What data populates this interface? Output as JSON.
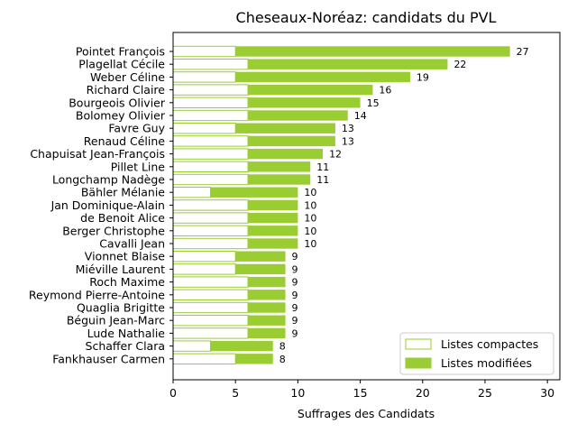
{
  "chart_data": {
    "type": "bar",
    "orientation": "horizontal",
    "stacked": true,
    "title": "Cheseaux-Noréaz: candidats du PVL",
    "xlabel": "Suffrages des Candidats",
    "ylabel": "",
    "xlim": [
      0,
      31
    ],
    "xticks": [
      0,
      5,
      10,
      15,
      20,
      25,
      30
    ],
    "grid": false,
    "legend_position": "lower-right",
    "categories": [
      "Pointet François",
      "Plagellat Cécile",
      "Weber Céline",
      "Richard Claire",
      "Bourgeois Olivier",
      "Bolomey Olivier",
      "Favre Guy",
      "Renaud Céline",
      "Chapuisat Jean-François",
      "Pillet Line",
      "Longchamp Nadège",
      "Bähler Mélanie",
      "Jan Dominique-Alain",
      "de Benoit Alice",
      "Berger Christophe",
      "Cavalli Jean",
      "Vionnet Blaise",
      "Miéville Laurent",
      "Roch Maxime",
      "Reymond Pierre-Antoine",
      "Quaglia Brigitte",
      "Béguin Jean-Marc",
      "Lude Nathalie",
      "Schaffer Clara",
      "Fankhauser Carmen"
    ],
    "series": [
      {
        "name": "Listes compactes",
        "color": "#9acd32",
        "fill": "#ffffff",
        "values": [
          5,
          6,
          5,
          6,
          6,
          6,
          5,
          6,
          6,
          6,
          6,
          3,
          6,
          6,
          6,
          6,
          5,
          5,
          6,
          6,
          6,
          6,
          6,
          3,
          5
        ]
      },
      {
        "name": "Listes modifiées",
        "color": "#9acd32",
        "fill": "#9acd32",
        "values": [
          22,
          16,
          14,
          10,
          9,
          8,
          8,
          7,
          6,
          5,
          5,
          7,
          4,
          4,
          4,
          4,
          4,
          4,
          3,
          3,
          3,
          3,
          3,
          5,
          3
        ]
      }
    ],
    "totals": [
      27,
      22,
      19,
      16,
      15,
      14,
      13,
      13,
      12,
      11,
      11,
      10,
      10,
      10,
      10,
      10,
      9,
      9,
      9,
      9,
      9,
      9,
      9,
      8,
      8
    ]
  }
}
